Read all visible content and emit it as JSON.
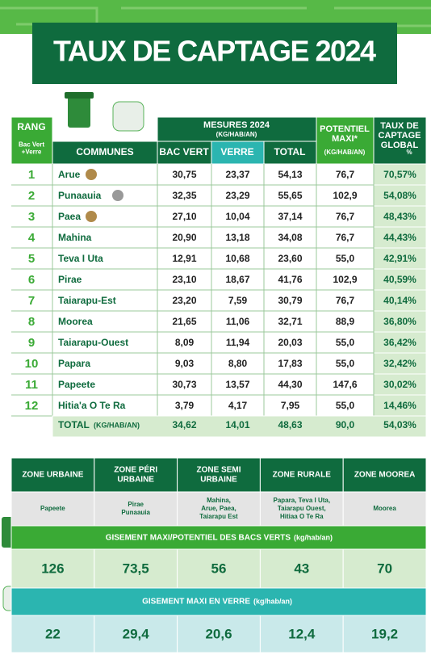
{
  "title": "TAUX DE CAPTAGE 2024",
  "table": {
    "header": {
      "rang": "RANG",
      "rang_sub": [
        "Bac Vert",
        "+Verre"
      ],
      "mesures": "MESURES 2024",
      "mesures_unit": "(KG/HAB/AN)",
      "communes": "COMMUNES",
      "bac_vert": "BAC VERT",
      "verre": "VERRE",
      "total": "TOTAL",
      "potentiel": [
        "POTENTIEL",
        "MAXI*"
      ],
      "potentiel_unit": "(KG/HAB/AN)",
      "taux": [
        "TAUX DE",
        "CAPTAGE",
        "GLOBAL"
      ],
      "taux_unit": "%"
    },
    "rows": [
      [
        "1",
        "Arue",
        "30,75",
        "23,37",
        "54,13",
        "76,7",
        "70,57%"
      ],
      [
        "2",
        "Punaauia",
        "32,35",
        "23,29",
        "55,65",
        "102,9",
        "54,08%"
      ],
      [
        "3",
        "Paea",
        "27,10",
        "10,04",
        "37,14",
        "76,7",
        "48,43%"
      ],
      [
        "4",
        "Mahina",
        "20,90",
        "13,18",
        "34,08",
        "76,7",
        "44,43%"
      ],
      [
        "5",
        "Teva I Uta",
        "12,91",
        "10,68",
        "23,60",
        "55,0",
        "42,91%"
      ],
      [
        "6",
        "Pirae",
        "23,10",
        "18,67",
        "41,76",
        "102,9",
        "40,59%"
      ],
      [
        "7",
        "Taiarapu-Est",
        "23,20",
        "7,59",
        "30,79",
        "76,7",
        "40,14%"
      ],
      [
        "8",
        "Moorea",
        "21,65",
        "11,06",
        "32,71",
        "88,9",
        "36,80%"
      ],
      [
        "9",
        "Taiarapu-Ouest",
        "8,09",
        "11,94",
        "20,03",
        "55,0",
        "36,42%"
      ],
      [
        "10",
        "Papara",
        "9,03",
        "8,80",
        "17,83",
        "55,0",
        "32,42%"
      ],
      [
        "11",
        "Papeete",
        "30,73",
        "13,57",
        "44,30",
        "147,6",
        "30,02%"
      ],
      [
        "12",
        "Hitia'a O Te Ra",
        "3,79",
        "4,17",
        "7,95",
        "55,0",
        "14,46%"
      ]
    ],
    "total": {
      "label": "TOTAL",
      "unit": "(KG/HAB/AN)",
      "values": [
        "34,62",
        "14,01",
        "48,63",
        "90,0",
        "54,03%"
      ]
    }
  },
  "zones": {
    "names": [
      [
        "ZONE URBAINE"
      ],
      [
        "ZONE PÉRI",
        "URBAINE"
      ],
      [
        "ZONE SEMI",
        "URBAINE"
      ],
      [
        "ZONE RURALE"
      ],
      [
        "ZONE MOOREA"
      ]
    ],
    "communes": [
      [
        "Papeete"
      ],
      [
        "Pirae",
        "Punaauia"
      ],
      [
        "Mahina,",
        "Arue, Paea,",
        "Taiarapu Est"
      ],
      [
        "Papara, Teva I Uta,",
        "Taiarapu Ouest,",
        "Hitiaa O Te Ra"
      ],
      [
        "Moorea"
      ]
    ],
    "gisement_verts": {
      "title": "GISEMENT MAXI/POTENTIEL DES BACS VERTS",
      "unit": "(kg/hab/an)",
      "values": [
        "126",
        "73,5",
        "56",
        "43",
        "70"
      ]
    },
    "gisement_verre": {
      "title": "GISEMENT MAXI EN VERRE",
      "unit": "(kg/hab/an)",
      "values": [
        "22",
        "29,4",
        "20,6",
        "12,4",
        "19,2"
      ]
    }
  }
}
